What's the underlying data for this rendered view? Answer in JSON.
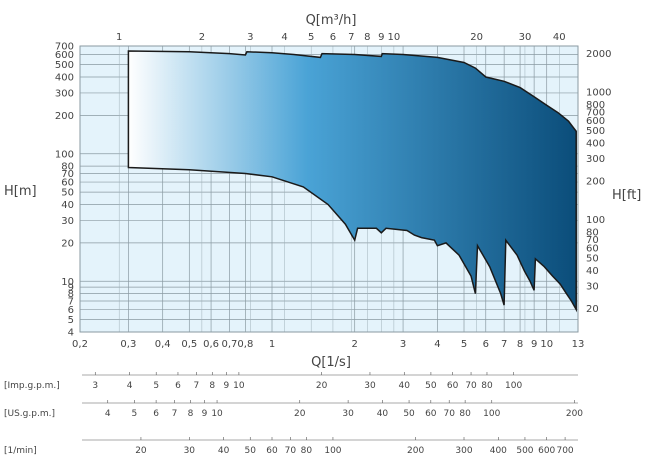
{
  "chart_data": {
    "type": "area",
    "title": "",
    "xlabel": "Q[1/s]",
    "ylabel": "H[m]",
    "top_axis_label": "Q[m³/h]",
    "right_axis_label": "H[ft]",
    "x_scale": "log",
    "y_scale": "log",
    "xlim": [
      0.2,
      13
    ],
    "ylim": [
      4,
      700
    ],
    "grid": true,
    "colors": {
      "plot_bg": "#e4f3fb",
      "grid": "#8a9aa2",
      "area_light": "#ffffff",
      "area_mid": "#4aa3d6",
      "area_dark": "#0b4d7a",
      "outline": "#1a1a1a"
    },
    "x_ticks": [
      "0,2",
      "0,3",
      "0,4",
      "0,5",
      "0,6",
      "0,7",
      "0,8",
      "1",
      "2",
      "3",
      "4",
      "5",
      "6",
      "7",
      "8",
      "9",
      "10",
      "13"
    ],
    "y_ticks_m": [
      "4",
      "5",
      "6",
      "7",
      "8",
      "9",
      "10",
      "20",
      "30",
      "40",
      "50",
      "60",
      "70",
      "80",
      "100",
      "200",
      "300",
      "400",
      "500",
      "600",
      "700"
    ],
    "top_ticks": [
      "1",
      "2",
      "3",
      "4",
      "5",
      "6",
      "7",
      "8",
      "9",
      "10",
      "20",
      "30",
      "40"
    ],
    "right_ticks_ft": [
      "20",
      "30",
      "40",
      "50",
      "60",
      "70",
      "80",
      "100",
      "200",
      "300",
      "400",
      "500",
      "600",
      "700",
      "800",
      "1000",
      "2000"
    ],
    "envelope": {
      "upper": [
        [
          0.3,
          640
        ],
        [
          0.5,
          630
        ],
        [
          0.7,
          610
        ],
        [
          0.8,
          595
        ],
        [
          0.81,
          630
        ],
        [
          1.0,
          620
        ],
        [
          1.2,
          600
        ],
        [
          1.5,
          570
        ],
        [
          1.52,
          610
        ],
        [
          2.0,
          600
        ],
        [
          2.5,
          580
        ],
        [
          2.52,
          610
        ],
        [
          3.0,
          600
        ],
        [
          4.0,
          570
        ],
        [
          5.0,
          520
        ],
        [
          5.5,
          470
        ],
        [
          6.0,
          400
        ],
        [
          7.0,
          370
        ],
        [
          8.0,
          330
        ],
        [
          9.0,
          280
        ],
        [
          10.0,
          240
        ],
        [
          11.0,
          210
        ],
        [
          12.0,
          180
        ],
        [
          12.8,
          150
        ]
      ],
      "lower": [
        [
          0.3,
          78
        ],
        [
          0.5,
          75
        ],
        [
          0.8,
          70
        ],
        [
          1.0,
          66
        ],
        [
          1.3,
          55
        ],
        [
          1.6,
          40
        ],
        [
          1.85,
          28
        ],
        [
          2.0,
          21
        ],
        [
          2.05,
          26
        ],
        [
          2.4,
          26
        ],
        [
          2.5,
          24
        ],
        [
          2.6,
          26
        ],
        [
          3.1,
          25
        ],
        [
          3.3,
          23
        ],
        [
          3.5,
          22
        ],
        [
          3.9,
          21
        ],
        [
          4.0,
          19
        ],
        [
          4.3,
          20
        ],
        [
          4.8,
          16
        ],
        [
          5.3,
          11
        ],
        [
          5.5,
          8
        ],
        [
          5.6,
          19
        ],
        [
          6.2,
          13
        ],
        [
          6.8,
          8
        ],
        [
          7.0,
          6.5
        ],
        [
          7.1,
          21
        ],
        [
          7.8,
          16
        ],
        [
          8.3,
          12
        ],
        [
          8.7,
          10
        ],
        [
          9.0,
          8.5
        ],
        [
          9.1,
          15
        ],
        [
          9.8,
          13
        ],
        [
          10.5,
          11
        ],
        [
          11.2,
          9.5
        ],
        [
          11.8,
          8
        ],
        [
          12.3,
          7
        ],
        [
          12.8,
          6
        ],
        [
          12.8,
          150
        ]
      ]
    }
  },
  "scales": [
    {
      "label": "[Imp.g.p.m.]",
      "ticks": [
        "3",
        "4",
        "5",
        "6",
        "7",
        "8",
        "9",
        "10",
        "20",
        "30",
        "40",
        "50",
        "60",
        "70",
        "80",
        "100"
      ]
    },
    {
      "label": "[US.g.p.m.]",
      "ticks": [
        "4",
        "5",
        "6",
        "7",
        "8",
        "9",
        "10",
        "20",
        "30",
        "40",
        "50",
        "60",
        "70",
        "80",
        "100",
        "200"
      ]
    },
    {
      "label": "[1/min]",
      "ticks": [
        "20",
        "30",
        "40",
        "50",
        "60",
        "70",
        "80",
        "100",
        "200",
        "300",
        "400",
        "500",
        "600",
        "700"
      ]
    }
  ]
}
